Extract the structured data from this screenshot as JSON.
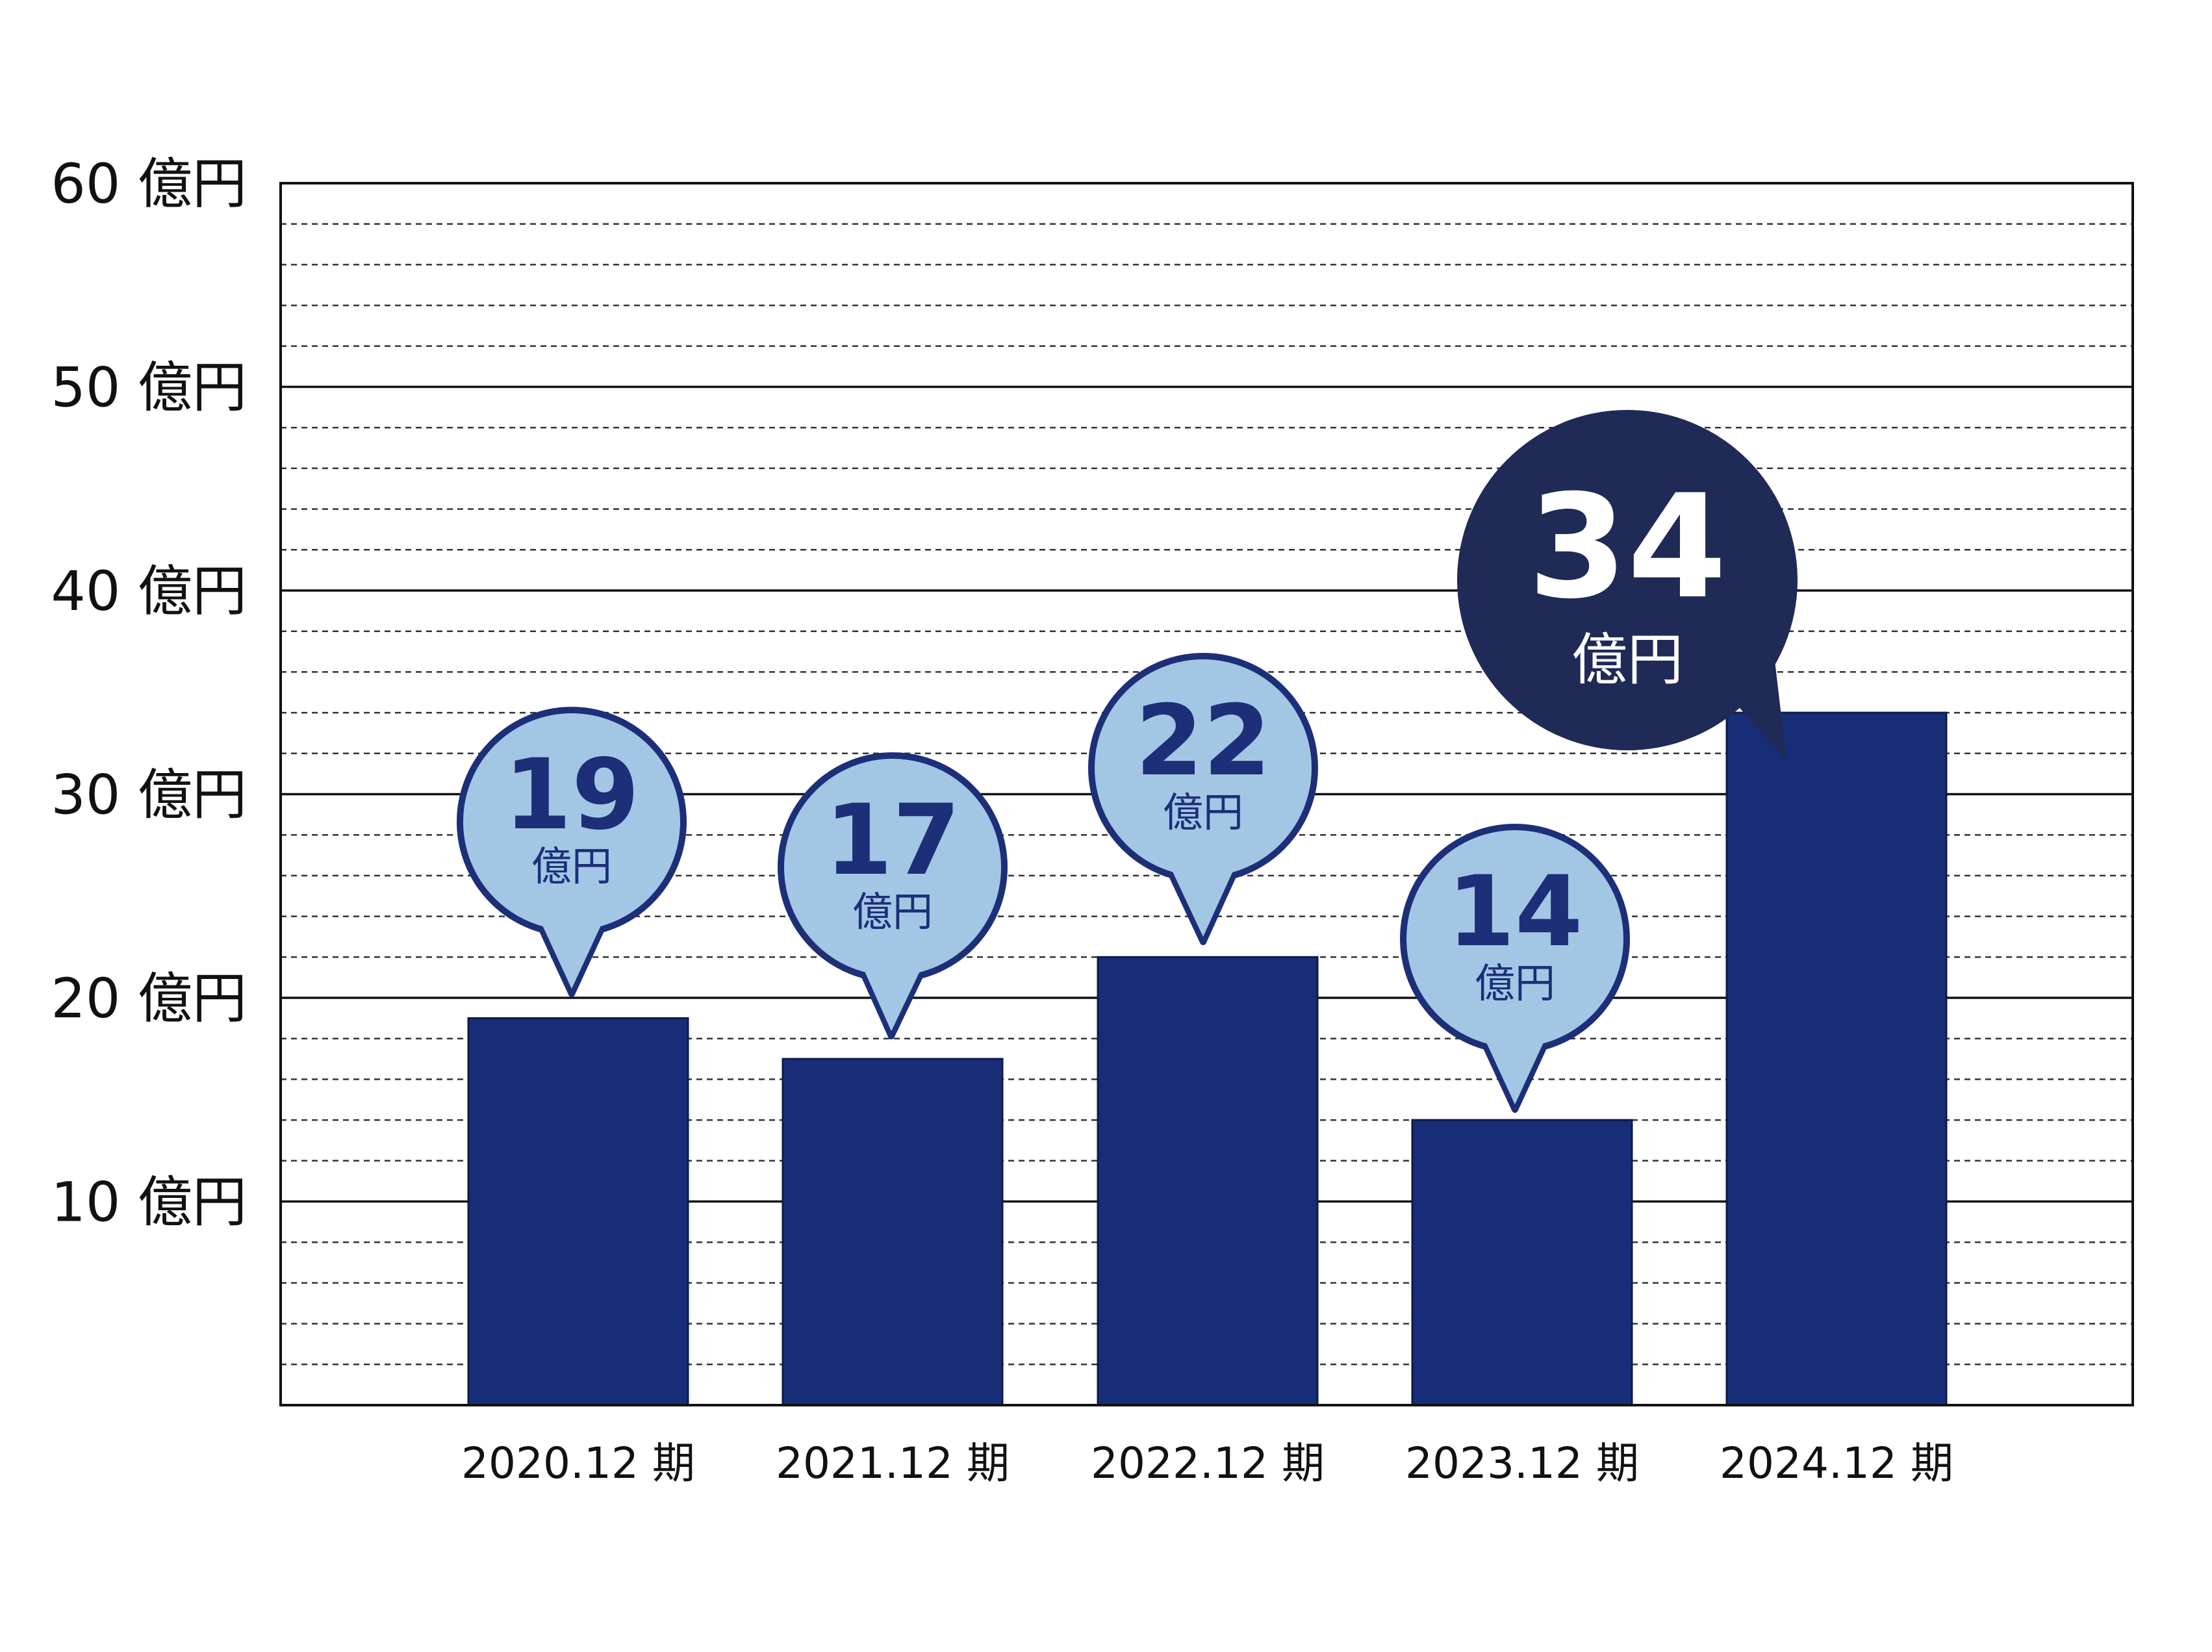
{
  "chart_data": {
    "type": "bar",
    "categories": [
      "2020.12 期",
      "2021.12 期",
      "2022.12 期",
      "2023.12 期",
      "2024.12 期"
    ],
    "values": [
      19,
      17,
      22,
      14,
      34
    ],
    "value_labels": [
      "19",
      "17",
      "22",
      "14",
      "34"
    ],
    "unit": "億円",
    "y_tick_labels": [
      "10 億円",
      "20 億円",
      "30 億円",
      "40 億円",
      "50 億円",
      "60 億円"
    ],
    "y_ticks": [
      10,
      20,
      30,
      40,
      50,
      60
    ],
    "ylim": [
      0,
      60
    ],
    "minor_step": 2,
    "title": "",
    "xlabel": "",
    "ylabel": "",
    "grid": true,
    "highlight_index": 4,
    "colors": {
      "bar": "#182d78",
      "bubble_fill": "#a3c6e5",
      "bubble_stroke": "#1c2f78",
      "bubble_text": "#1c2f78",
      "highlight_fill": "#1f2a56",
      "highlight_text": "#ffffff",
      "axis": "#111111",
      "text": "#111111"
    }
  }
}
